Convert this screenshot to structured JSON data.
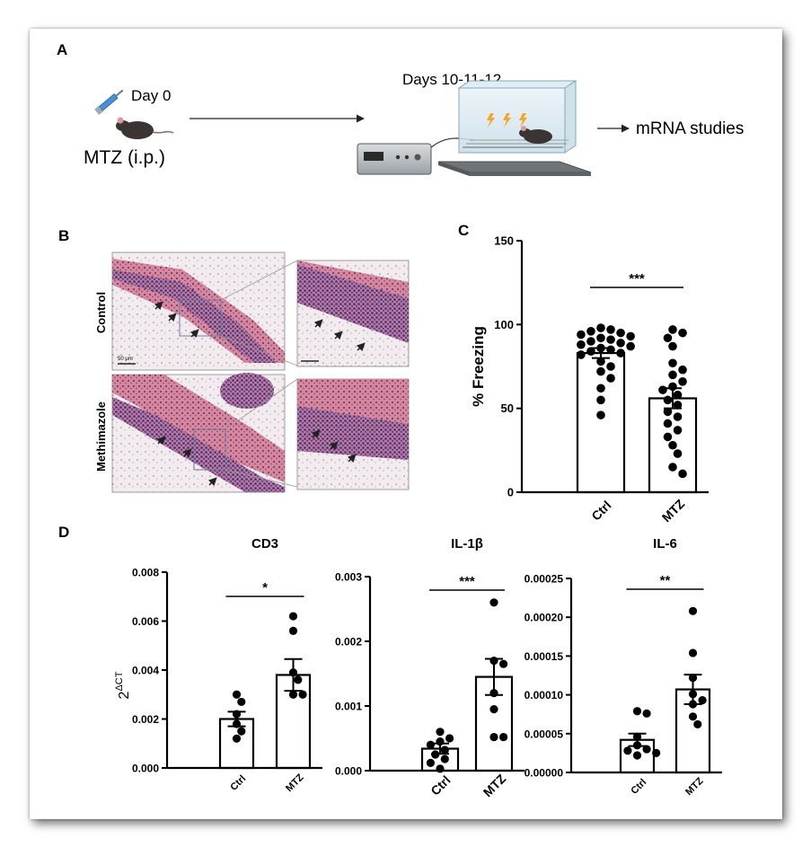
{
  "panels": {
    "a": {
      "letter": "A",
      "day0_label": "Day 0",
      "treatment_label": "MTZ (i.p.)",
      "days_label": "Days 10-11-12",
      "outcome_label": "mRNA studies"
    },
    "b": {
      "letter": "B",
      "row_labels": [
        "Control",
        "Methimazole"
      ],
      "scale_bar_label": "50 μm"
    },
    "c": {
      "letter": "C"
    },
    "d": {
      "letter": "D",
      "shared_ylabel": "2^ΔCT",
      "ylabel_base": "2",
      "ylabel_sup": "ΔCT"
    }
  },
  "colors": {
    "bar_fill": "#ffffff",
    "bar_stroke": "#000000",
    "points": "#000000",
    "he_pink": "#d47890",
    "he_purple": "#6a4a8c",
    "lightning": "#f5a623"
  },
  "chart_data": [
    {
      "id": "C",
      "type": "bar",
      "title": "",
      "xlabel": "",
      "ylabel": "% Freezing",
      "categories": [
        "Ctrl",
        "MTZ"
      ],
      "values": [
        83,
        56
      ],
      "sem": [
        3,
        6
      ],
      "ylim": [
        0,
        150
      ],
      "yticks": [
        "0",
        "50",
        "100",
        "150"
      ],
      "significance": "***",
      "points": [
        [
          98,
          97,
          96,
          95,
          94,
          93,
          92,
          91,
          90,
          89,
          88,
          87,
          86,
          85,
          84,
          83,
          82,
          78,
          75,
          72,
          68,
          62,
          55,
          46
        ],
        [
          97,
          95,
          92,
          87,
          77,
          73,
          70,
          66,
          63,
          61,
          58,
          55,
          52,
          48,
          45,
          41,
          37,
          33,
          28,
          23,
          15,
          11
        ]
      ]
    },
    {
      "id": "D-CD3",
      "type": "bar",
      "title": "CD3",
      "xlabel": "",
      "ylabel": "",
      "categories": [
        "Ctrl",
        "MTZ"
      ],
      "values": [
        0.002,
        0.0038
      ],
      "sem": [
        0.0003,
        0.00065
      ],
      "ylim": [
        0,
        0.008
      ],
      "yticks": [
        "0.000",
        "0.002",
        "0.004",
        "0.006",
        "0.008"
      ],
      "significance": "*",
      "points": [
        [
          0.003,
          0.0027,
          0.0022,
          0.0018,
          0.0015,
          0.0012
        ],
        [
          0.0062,
          0.0056,
          0.0039,
          0.0036,
          0.003,
          0.003
        ]
      ]
    },
    {
      "id": "D-IL1b",
      "type": "bar",
      "title": "IL-1β",
      "xlabel": "",
      "ylabel": "",
      "categories": [
        "Ctrl",
        "MTZ"
      ],
      "values": [
        0.00034,
        0.00145
      ],
      "sem": [
        8e-05,
        0.00028
      ],
      "ylim": [
        0,
        0.003
      ],
      "yticks": [
        "0.000",
        "0.001",
        "0.002",
        "0.003"
      ],
      "significance": "***",
      "points": [
        [
          0.0006,
          0.0005,
          0.00045,
          0.0004,
          0.00032,
          0.00025,
          0.00018,
          0.00012,
          3e-05
        ],
        [
          0.0026,
          0.0017,
          0.00165,
          0.0012,
          0.00095,
          0.00052,
          0.00052
        ]
      ]
    },
    {
      "id": "D-IL6",
      "type": "bar",
      "title": "IL-6",
      "xlabel": "",
      "ylabel": "",
      "categories": [
        "Ctrl",
        "MTZ"
      ],
      "values": [
        4.2e-05,
        0.000107
      ],
      "sem": [
        8e-06,
        1.9e-05
      ],
      "ylim": [
        0,
        0.00025
      ],
      "yticks": [
        "0.00000",
        "0.00005",
        "0.00010",
        "0.00015",
        "0.00020",
        "0.00025"
      ],
      "significance": "**",
      "points": [
        [
          7.9e-05,
          7.6e-05,
          4.6e-05,
          3.5e-05,
          3e-05,
          2.8e-05,
          2.5e-05,
          2.2e-05
        ],
        [
          0.000208,
          0.000154,
          0.000122,
          0.000101,
          9.3e-05,
          8.8e-05,
          7.2e-05,
          6.2e-05
        ]
      ]
    }
  ]
}
